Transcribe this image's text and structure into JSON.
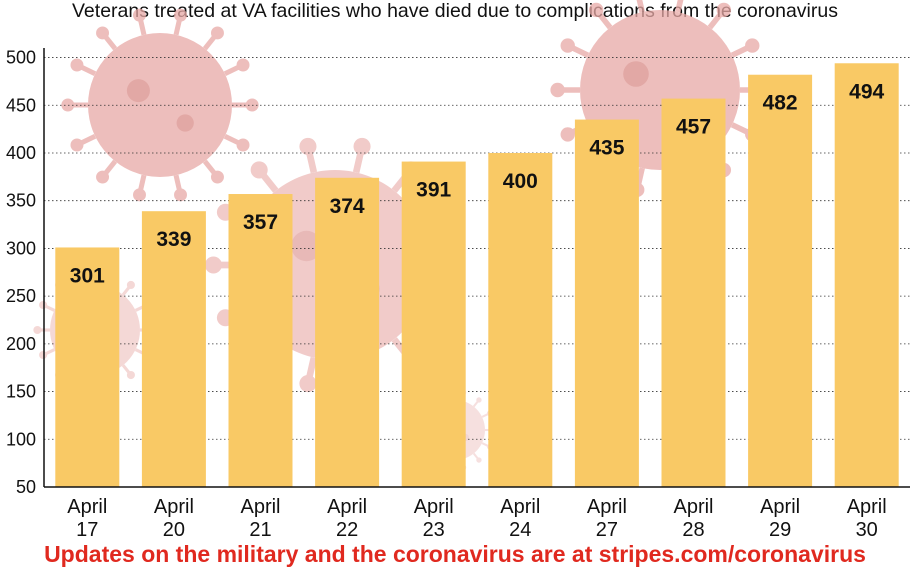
{
  "colors": {
    "bar": "#f9c965",
    "footer_text": "#e0291f",
    "virus": "#e8a9a6"
  },
  "footer": {
    "text": "Updates on the military and the coronavirus are at stripes.com/coronavirus"
  },
  "chart_data": {
    "type": "bar",
    "title": "Veterans treated at VA facilities who have died due to complications from the coronavirus",
    "categories": [
      [
        "April",
        "17"
      ],
      [
        "April",
        "20"
      ],
      [
        "April",
        "21"
      ],
      [
        "April",
        "22"
      ],
      [
        "April",
        "23"
      ],
      [
        "April",
        "24"
      ],
      [
        "April",
        "27"
      ],
      [
        "April",
        "28"
      ],
      [
        "April",
        "29"
      ],
      [
        "April",
        "30"
      ]
    ],
    "values": [
      301,
      339,
      357,
      374,
      391,
      400,
      435,
      457,
      482,
      494
    ],
    "data_labels": [
      "301",
      "339",
      "357",
      "374",
      "391",
      "400",
      "435",
      "457",
      "482",
      "494"
    ],
    "yticks": [
      50,
      100,
      150,
      200,
      250,
      300,
      350,
      400,
      450,
      500
    ],
    "ylim": [
      50,
      510
    ],
    "grid": true,
    "xlabel": "",
    "ylabel": "",
    "background_decoration": "coronavirus illustrations"
  }
}
